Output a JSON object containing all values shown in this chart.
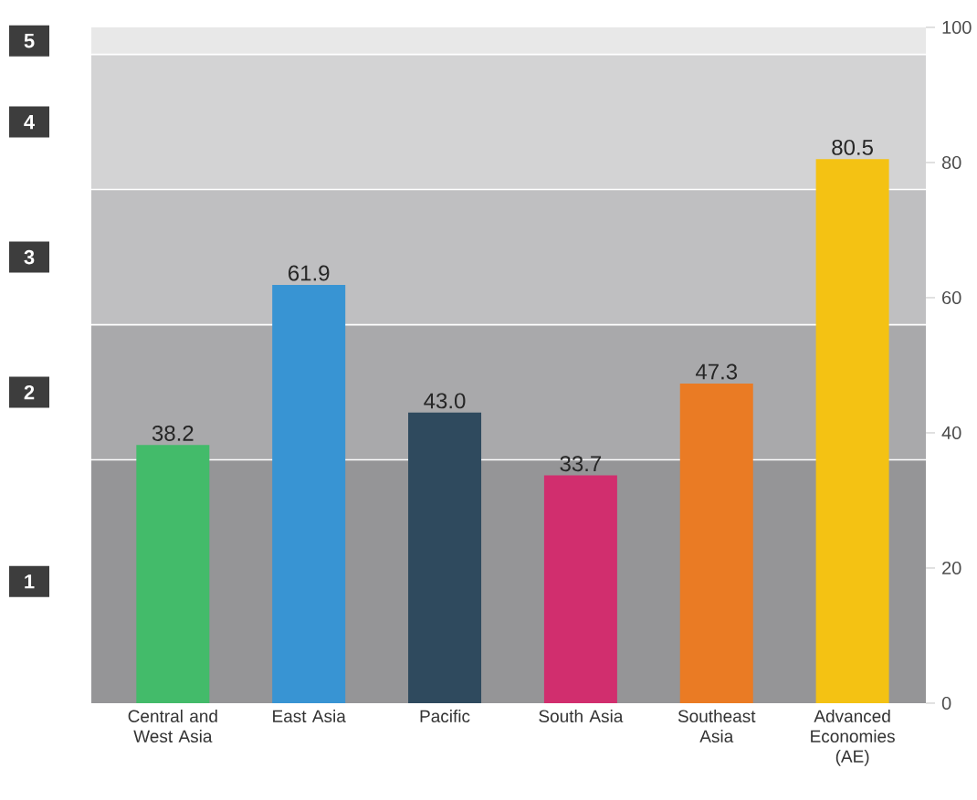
{
  "chart_data": {
    "type": "bar",
    "categories": [
      "Central and West Asia",
      "East Asia",
      "Pacific",
      "South Asia",
      "Southeast Asia",
      "Advanced Economies (AE)"
    ],
    "values": [
      38.2,
      61.9,
      43.0,
      33.7,
      47.3,
      80.5
    ],
    "colors": [
      "#43bb6a",
      "#3894d3",
      "#2f4a5e",
      "#d12e6e",
      "#ea7b24",
      "#f4c213"
    ],
    "ylim": [
      0,
      100
    ],
    "yticks": [
      0,
      20,
      40,
      60,
      80,
      100
    ],
    "value_labels": [
      "38.2",
      "61.9",
      "43.0",
      "33.7",
      "47.3",
      "80.5"
    ],
    "bands": [
      {
        "axis": "y",
        "from": 0,
        "to": 36,
        "label": "1",
        "color": "#959597"
      },
      {
        "axis": "y",
        "from": 36,
        "to": 56,
        "label": "2",
        "color": "#a9a9ab"
      },
      {
        "axis": "y",
        "from": 56,
        "to": 76,
        "label": "3",
        "color": "#bfbfc1"
      },
      {
        "axis": "y",
        "from": 76,
        "to": 96,
        "label": "4",
        "color": "#d3d3d4"
      },
      {
        "axis": "y",
        "from": 96,
        "to": 100,
        "label": "5",
        "color": "#e8e8e8"
      }
    ]
  }
}
